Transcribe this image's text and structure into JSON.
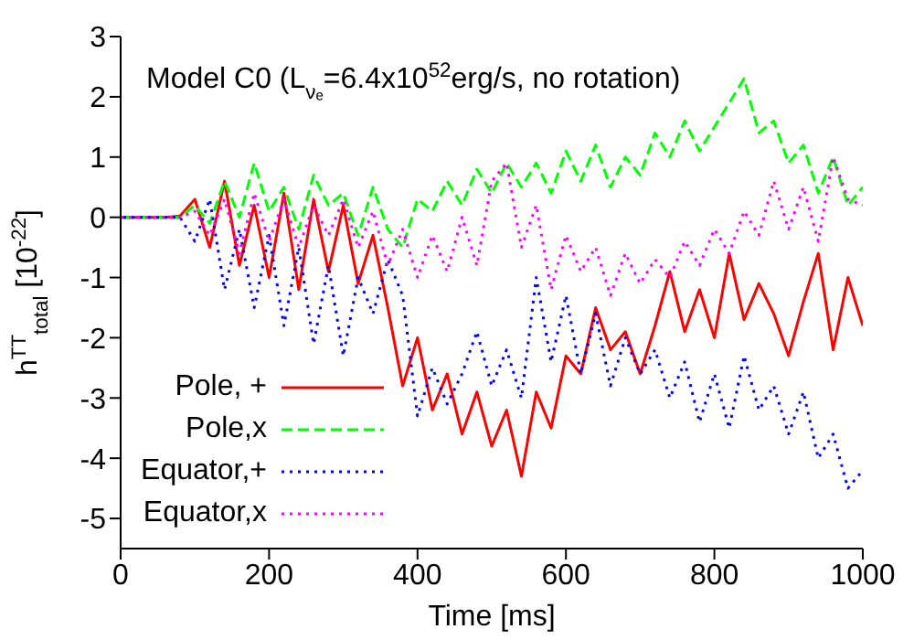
{
  "chart_data": {
    "type": "line",
    "title": "Model C0 (L$_{νₑ}$=6.4x10$^{52}$erg/s, no rotation)",
    "xlabel": "Time [ms]",
    "ylabel": "h$^{TT}$$_{total}$ [10$^{-22}$]",
    "x": [
      0,
      20,
      40,
      60,
      80,
      100,
      120,
      140,
      160,
      180,
      200,
      220,
      240,
      260,
      280,
      300,
      320,
      340,
      360,
      380,
      400,
      420,
      440,
      460,
      480,
      500,
      520,
      540,
      560,
      580,
      600,
      620,
      640,
      660,
      680,
      700,
      720,
      740,
      760,
      780,
      800,
      820,
      840,
      860,
      880,
      900,
      920,
      940,
      960,
      980,
      1000
    ],
    "series": [
      {
        "name": "Pole, +",
        "color": "#ff0000",
        "line_style": "solid",
        "values": [
          0,
          0,
          0,
          0,
          0.02,
          0.3,
          -0.5,
          0.6,
          -0.8,
          0.2,
          -1.0,
          0.4,
          -1.2,
          0.3,
          -0.9,
          0.2,
          -1.1,
          -0.3,
          -1.5,
          -2.8,
          -2.0,
          -3.2,
          -2.6,
          -3.6,
          -2.9,
          -3.8,
          -3.2,
          -4.3,
          -2.9,
          -3.5,
          -2.3,
          -2.6,
          -1.5,
          -2.2,
          -1.9,
          -2.6,
          -1.8,
          -0.9,
          -1.9,
          -1.2,
          -2.0,
          -0.6,
          -1.7,
          -1.1,
          -1.6,
          -2.3,
          -1.4,
          -0.6,
          -2.2,
          -1.0,
          -1.8
        ]
      },
      {
        "name": "Pole,x",
        "color": "#00ff00",
        "line_style": "dashed",
        "values": [
          0,
          0,
          0,
          0,
          0,
          0.2,
          -0.1,
          0.6,
          0,
          0.9,
          0.1,
          0.5,
          -0.2,
          0.7,
          0.2,
          0.4,
          -0.3,
          0.5,
          -0.2,
          -0.5,
          0.3,
          0.1,
          0.6,
          0.2,
          0.8,
          0.4,
          0.9,
          0.5,
          0.9,
          0.4,
          1.1,
          0.6,
          1.2,
          0.5,
          1.0,
          0.7,
          1.4,
          1.0,
          1.6,
          1.1,
          1.5,
          1.9,
          2.3,
          1.4,
          1.6,
          0.9,
          1.2,
          0.4,
          1.0,
          0.2,
          0.5
        ]
      },
      {
        "name": "Equator,+",
        "color": "#0000ff",
        "line_style": "dotted",
        "values": [
          0,
          0,
          0,
          0,
          0,
          -0.4,
          0.3,
          -1.2,
          -0.2,
          -1.5,
          -0.3,
          -1.8,
          -0.5,
          -2.1,
          -0.8,
          -2.3,
          -1.0,
          -1.6,
          -0.7,
          -1.3,
          -3.3,
          -2.5,
          -3.1,
          -2.6,
          -1.9,
          -2.8,
          -2.2,
          -3.0,
          -1.0,
          -2.4,
          -1.3,
          -2.6,
          -1.6,
          -2.8,
          -2.0,
          -2.6,
          -2.2,
          -3.0,
          -2.4,
          -3.4,
          -2.6,
          -3.5,
          -2.3,
          -3.2,
          -2.8,
          -3.6,
          -2.9,
          -4.0,
          -3.6,
          -4.5,
          -4.2
        ]
      },
      {
        "name": "Equator,x",
        "color": "#ff00ff",
        "line_style": "dotted",
        "values": [
          0,
          0,
          0,
          0,
          0,
          0.1,
          -0.3,
          0.3,
          -0.6,
          0.4,
          -0.4,
          0.3,
          -0.5,
          0.2,
          -0.3,
          0.3,
          -0.5,
          0.1,
          -0.8,
          -0.2,
          -1.0,
          -0.3,
          -0.9,
          0,
          -0.8,
          0.6,
          0.9,
          -0.5,
          0.2,
          -1.2,
          -0.3,
          -0.9,
          -0.5,
          -1.3,
          -0.6,
          -1.1,
          -0.7,
          -1.0,
          -0.4,
          -0.8,
          -0.2,
          -0.6,
          0.1,
          -0.3,
          0.6,
          -0.2,
          0.5,
          -0.4,
          1.0,
          0.3,
          0.2
        ]
      }
    ],
    "xlim": [
      0,
      1000
    ],
    "xticks": [
      0,
      200,
      400,
      600,
      800,
      1000
    ],
    "ylim": [
      -5.5,
      3
    ],
    "yticks": [
      -5,
      -4,
      -3,
      -2,
      -1,
      0,
      1,
      2,
      3
    ],
    "legend": "bottom left",
    "grid": false,
    "marker": "none"
  }
}
